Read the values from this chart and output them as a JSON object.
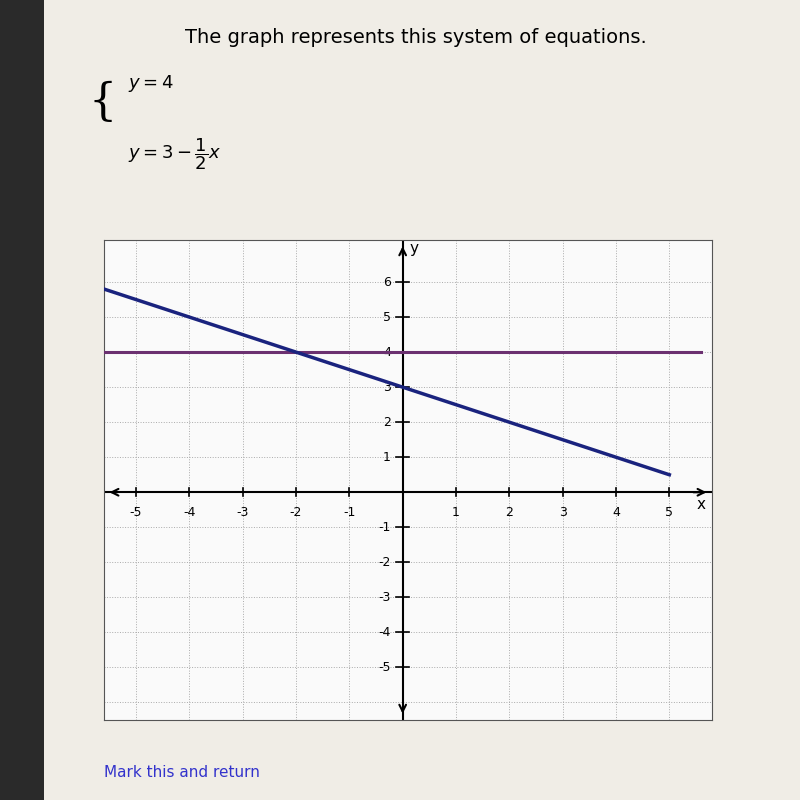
{
  "title": "The graph represents this system of equations.",
  "title_fontsize": 14,
  "line1_color": "#6B3070",
  "line2_color": "#1A237E",
  "bg_color": "#FAFAFA",
  "page_bg": "#F0EDE6",
  "grid_color": "#AAAAAA",
  "axis_color": "#000000",
  "xlim": [
    -5.6,
    5.8
  ],
  "ylim": [
    -6.5,
    7.2
  ],
  "xticks": [
    -5,
    -4,
    -3,
    -2,
    -1,
    1,
    2,
    3,
    4,
    5
  ],
  "yticks": [
    -5,
    -4,
    -3,
    -2,
    -1,
    1,
    2,
    3,
    4,
    5,
    6
  ],
  "line1_y": 4,
  "line2_slope": -0.5,
  "line2_intercept": 3,
  "mark_this_text": "Mark this and return",
  "mark_this_color": "#3333CC",
  "sidebar_color": "#2A2A2A",
  "graph_border_color": "#555555",
  "line2_x_start": -5.6,
  "line2_x_end": 5.0,
  "line1_x_start": -5.6,
  "line1_x_end": 5.6
}
